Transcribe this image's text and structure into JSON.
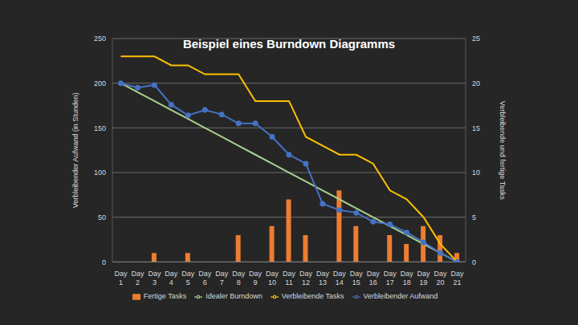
{
  "chart_data": {
    "type": "combo",
    "title": "Beispiel eines Burndown Diagramms",
    "y_label": "Verbleibender Aufwand (in Stunden)",
    "y2_label": "Verbleibende und fertige Tasks",
    "categories": [
      "Day 1",
      "Day 2",
      "Day 3",
      "Day 4",
      "Day 5",
      "Day 6",
      "Day 7",
      "Day 8",
      "Day 9",
      "Day 10",
      "Day 11",
      "Day 12",
      "Day 13",
      "Day 14",
      "Day 15",
      "Day 16",
      "Day 17",
      "Day 18",
      "Day 19",
      "Day 20",
      "Day 21"
    ],
    "series": [
      {
        "name": "Fertige Tasks",
        "type": "bar",
        "axis": "y2",
        "color": "#ed7d31",
        "values": [
          0,
          0,
          1,
          0,
          1,
          0,
          0,
          3,
          0,
          4,
          7,
          3,
          0,
          8,
          4,
          0,
          3,
          2,
          4,
          3,
          1
        ]
      },
      {
        "name": "Idealer Burndown",
        "type": "line",
        "axis": "y",
        "color": "#a9d18e",
        "marker": "none",
        "values": [
          200,
          190,
          180,
          170,
          160,
          150,
          140,
          130,
          120,
          110,
          100,
          90,
          80,
          70,
          60,
          50,
          40,
          30,
          20,
          10,
          0
        ]
      },
      {
        "name": "Verbleibender Aufwand",
        "type": "line",
        "axis": "y",
        "color": "#4472c4",
        "marker": "circle",
        "values": [
          200,
          195,
          198,
          176,
          164,
          170,
          165,
          155,
          155,
          140,
          120,
          110,
          65,
          58,
          55,
          45,
          42,
          33,
          22,
          10,
          0
        ]
      },
      {
        "name": "Verbleibende Tasks",
        "type": "line",
        "axis": "y2",
        "color": "#ffc000",
        "marker": "none",
        "values": [
          23,
          23,
          23,
          22,
          22,
          21,
          21,
          21,
          18,
          18,
          18,
          14,
          13,
          12,
          12,
          11,
          8,
          7,
          5,
          2,
          0
        ]
      }
    ],
    "ylim": [
      0,
      250
    ],
    "yticks": [
      0,
      50,
      100,
      150,
      200,
      250
    ],
    "y2lim": [
      0,
      25
    ],
    "y2ticks": [
      0,
      5,
      10,
      15,
      20,
      25
    ],
    "grid": true,
    "legend": "bottom"
  }
}
